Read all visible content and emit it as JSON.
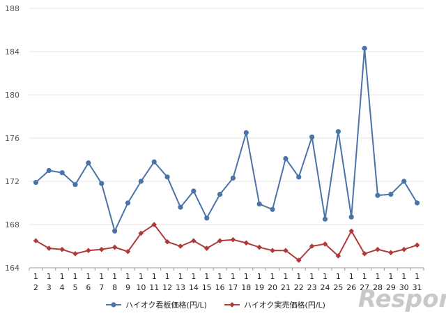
{
  "chart_data": {
    "type": "line",
    "ylim": [
      164,
      188
    ],
    "yticks": [
      "164",
      "168",
      "172",
      "176",
      "180",
      "184",
      "188"
    ],
    "xtick_top": [
      "1",
      "1",
      "1",
      "1",
      "1",
      "1",
      "1",
      "1",
      "1",
      "1",
      "1",
      "1",
      "1",
      "1",
      "1",
      "1",
      "1",
      "1",
      "1",
      "1",
      "1",
      "1",
      "1",
      "1",
      "1",
      "1",
      "1",
      "1",
      "1",
      "1",
      "1"
    ],
    "categories": [
      "2",
      "3",
      "4",
      "5",
      "6",
      "7",
      "8",
      "9",
      "10",
      "11",
      "12",
      "13",
      "14",
      "15",
      "16",
      "17",
      "18",
      "19",
      "20",
      "21",
      "22",
      "23",
      "24",
      "25",
      "26",
      "27",
      "28",
      "29",
      "30",
      "31"
    ],
    "series": [
      {
        "name": "ハイオク看板価格(円/L)",
        "color": "#4a73a8",
        "marker": "circle",
        "values": [
          171.9,
          173.0,
          172.8,
          171.7,
          173.7,
          171.8,
          167.4,
          170.0,
          172.0,
          173.8,
          172.4,
          169.6,
          171.1,
          168.6,
          170.8,
          172.3,
          176.5,
          169.9,
          169.4,
          174.1,
          172.4,
          176.1,
          168.5,
          176.6,
          168.7,
          184.3,
          170.7,
          170.8,
          172.0,
          170.0
        ]
      },
      {
        "name": "ハイオク実売価格(円/L)",
        "color": "#b03a3a",
        "marker": "diamond",
        "values": [
          166.5,
          165.8,
          165.7,
          165.3,
          165.6,
          165.7,
          165.9,
          165.5,
          167.2,
          168.0,
          166.4,
          166.0,
          166.5,
          165.8,
          166.5,
          166.6,
          166.3,
          165.9,
          165.6,
          165.6,
          164.7,
          166.0,
          166.2,
          165.1,
          167.4,
          165.3,
          165.7,
          165.4,
          165.7,
          166.1
        ]
      }
    ],
    "grid": true,
    "legend_position": "bottom"
  },
  "watermark": "Response."
}
